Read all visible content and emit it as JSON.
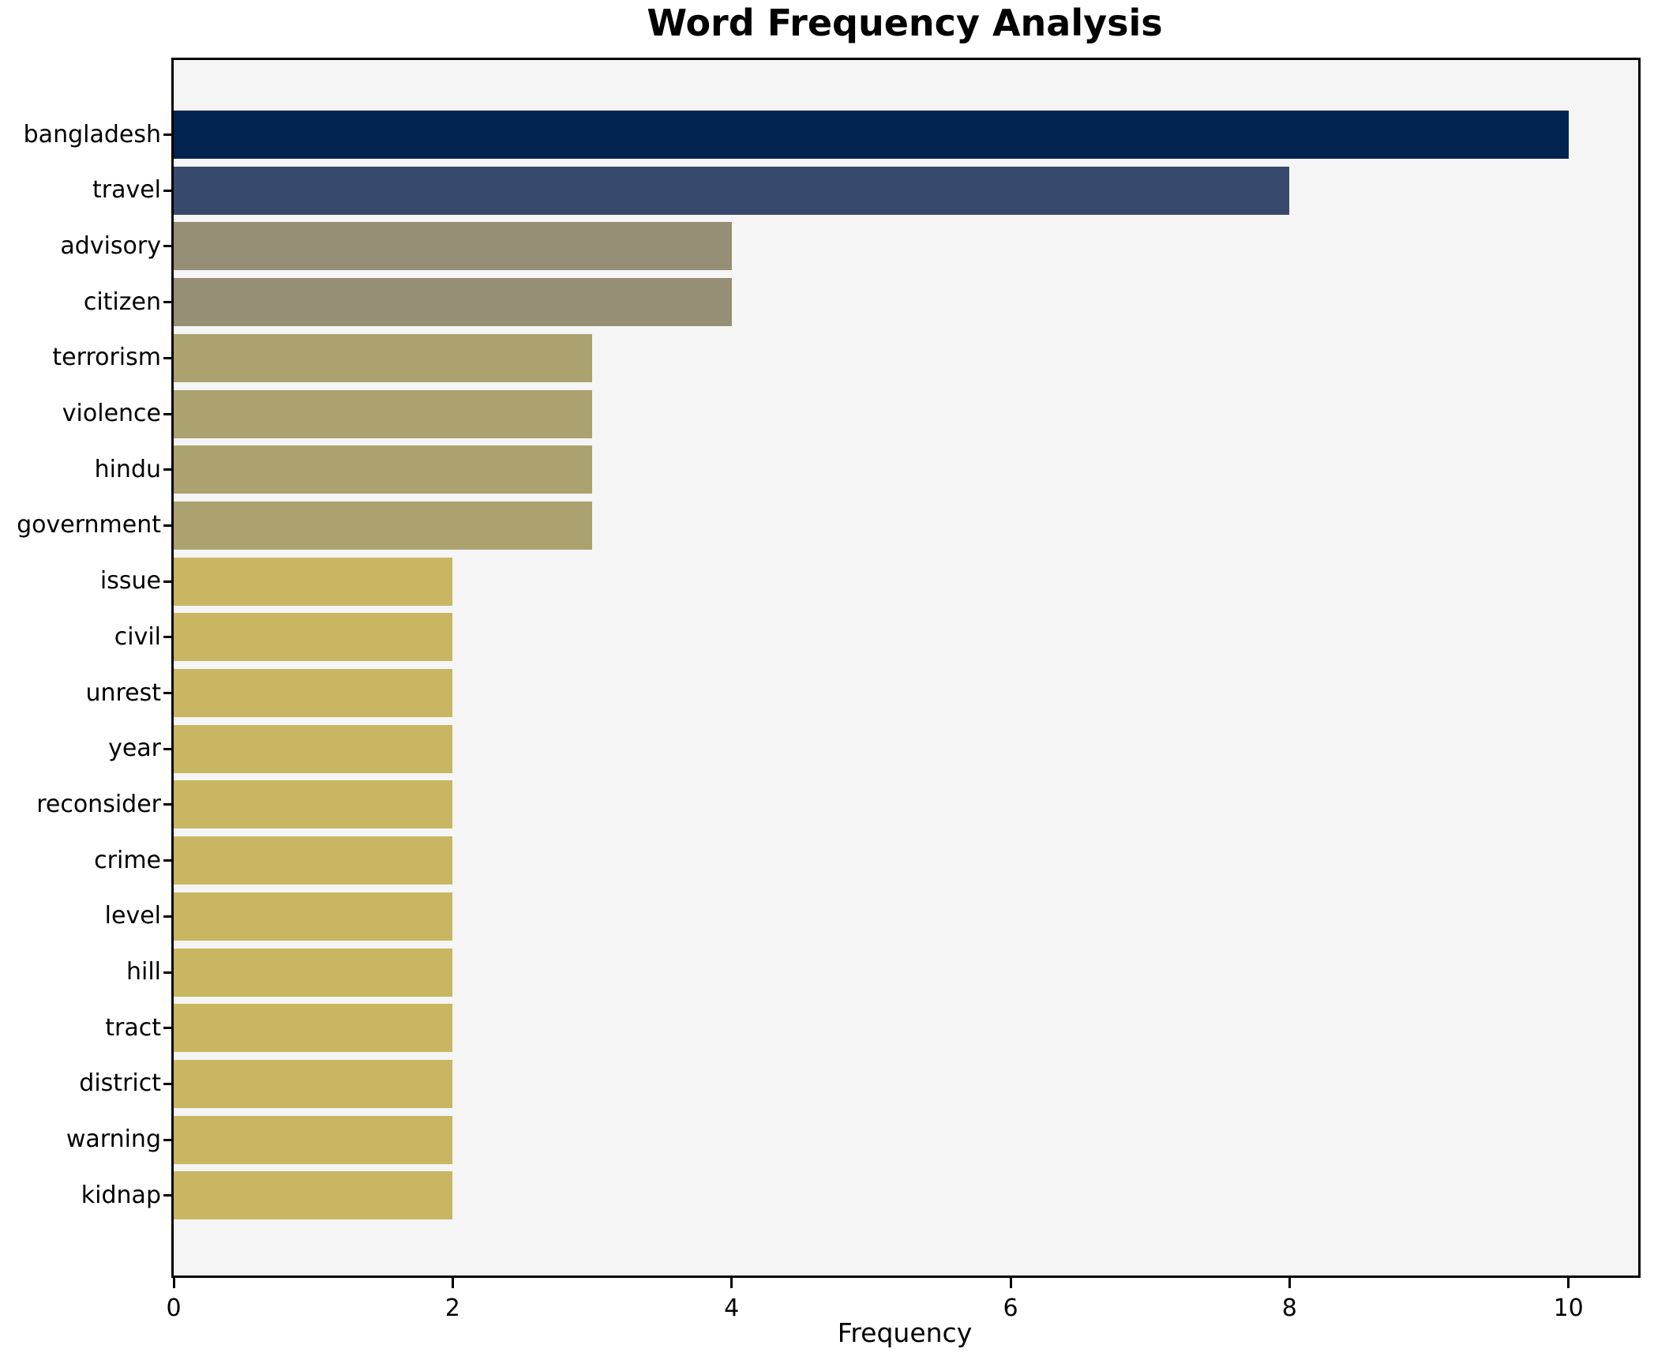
{
  "chart_data": {
    "type": "bar",
    "orientation": "horizontal",
    "title": "Word Frequency Analysis",
    "xlabel": "Frequency",
    "ylabel": "",
    "categories": [
      "bangladesh",
      "travel",
      "advisory",
      "citizen",
      "terrorism",
      "violence",
      "hindu",
      "government",
      "issue",
      "civil",
      "unrest",
      "year",
      "reconsider",
      "crime",
      "level",
      "hill",
      "tract",
      "district",
      "warning",
      "kidnap"
    ],
    "values": [
      10,
      8,
      4,
      4,
      3,
      3,
      3,
      3,
      2,
      2,
      2,
      2,
      2,
      2,
      2,
      2,
      2,
      2,
      2,
      2
    ],
    "xlim": [
      0,
      10.5
    ],
    "xticks": [
      0,
      2,
      4,
      6,
      8,
      10
    ],
    "grid": false,
    "legend": null,
    "colors_by_value": {
      "10": "#00234f",
      "8": "#374a6e",
      "4": "#958f75",
      "3": "#aca26f",
      "2": "#c9b662"
    },
    "plot_background": "#f5f5f5",
    "figure_background": "#ffffff",
    "frame_color": "#000000",
    "text_color": "#000000"
  }
}
